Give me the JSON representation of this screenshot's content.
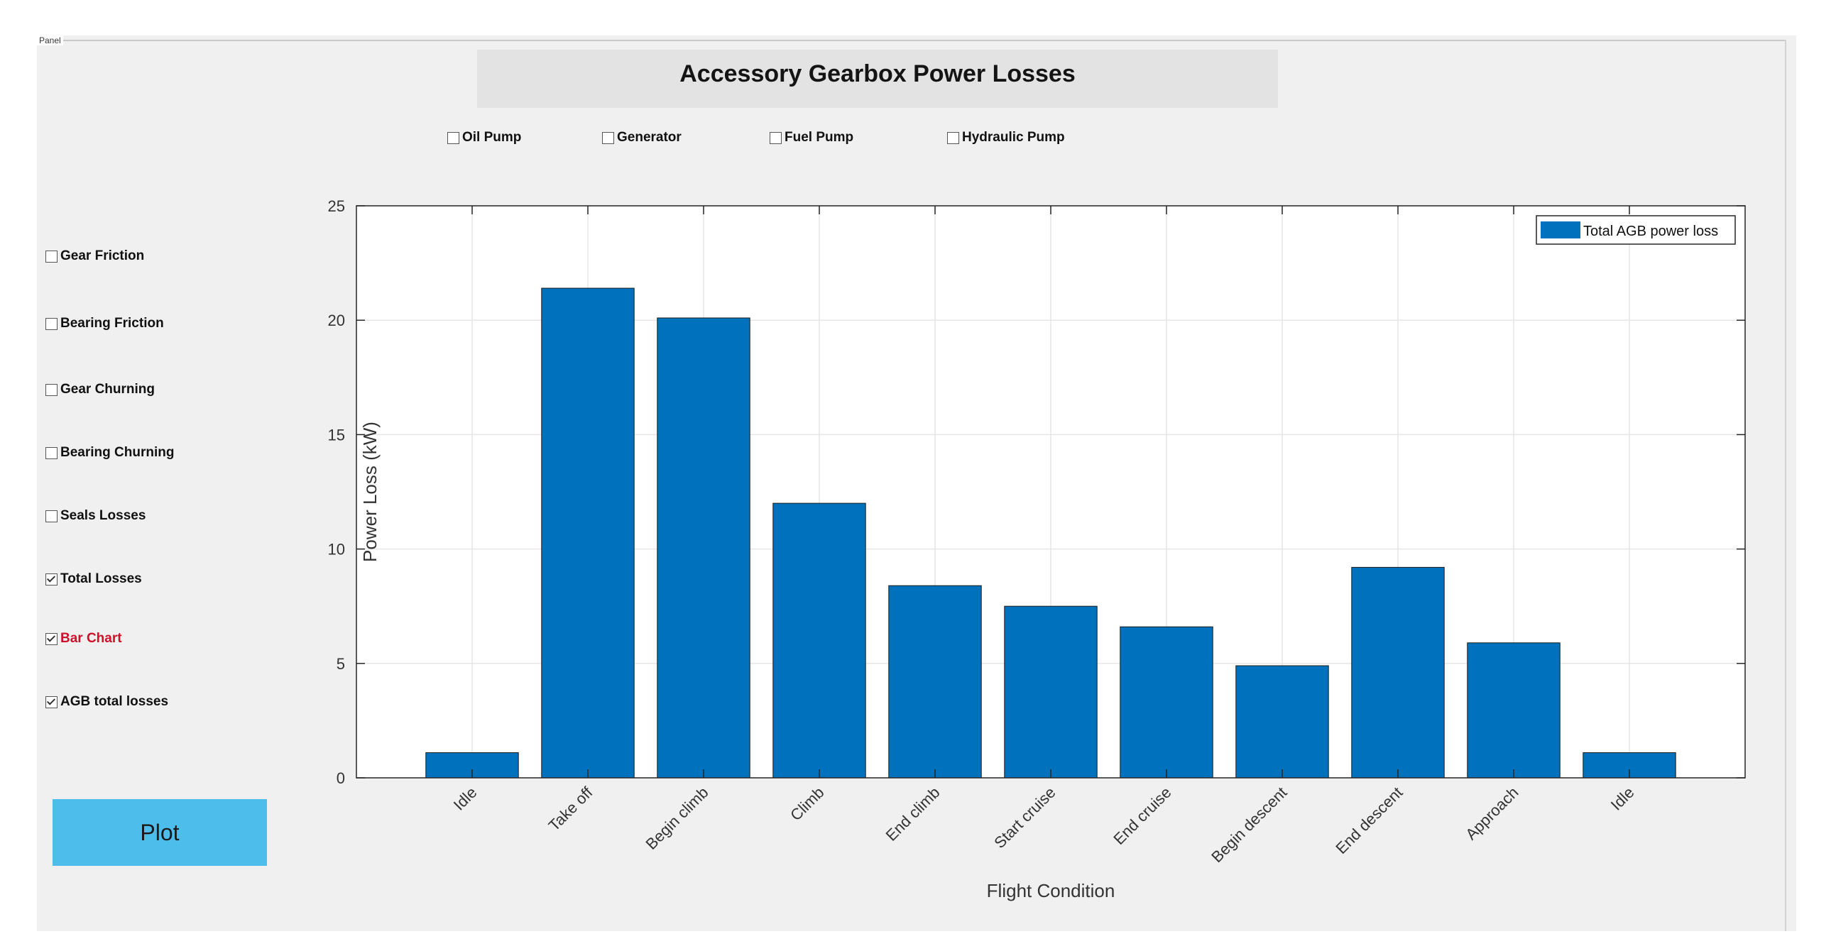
{
  "panel": {
    "label": "Panel"
  },
  "title": "Accessory Gearbox Power Losses",
  "top_checkboxes": [
    {
      "label": "Oil Pump",
      "checked": false
    },
    {
      "label": "Generator",
      "checked": false
    },
    {
      "label": "Fuel Pump",
      "checked": false
    },
    {
      "label": "Hydraulic Pump",
      "checked": false
    }
  ],
  "side_checkboxes": [
    {
      "label": "Gear Friction",
      "checked": false
    },
    {
      "label": "Bearing Friction",
      "checked": false
    },
    {
      "label": "Gear Churning",
      "checked": false
    },
    {
      "label": "Bearing Churning",
      "checked": false
    },
    {
      "label": "Seals Losses",
      "checked": false
    },
    {
      "label": "Total Losses",
      "checked": true
    },
    {
      "label": "Bar Chart",
      "checked": true,
      "color": "#d0102a"
    },
    {
      "label": "AGB total losses",
      "checked": true
    }
  ],
  "plot_button": {
    "label": "Plot"
  },
  "chart_data": {
    "type": "bar",
    "categories": [
      "Idle",
      "Take off",
      "Begin climb",
      "Climb",
      "End climb",
      "Start cruise",
      "End cruise",
      "Begin descent",
      "End descent",
      "Approach",
      "Idle"
    ],
    "series": [
      {
        "name": "Total AGB power loss",
        "values": [
          1.1,
          21.4,
          20.1,
          12.0,
          8.4,
          7.5,
          6.6,
          4.9,
          9.2,
          5.9,
          1.1
        ],
        "color": "#0072bd"
      }
    ],
    "xlabel": "Flight Condition",
    "ylabel": "Power Loss (kW)",
    "ylim": [
      0,
      25
    ],
    "yticks": [
      0,
      5,
      10,
      15,
      20,
      25
    ],
    "grid": true,
    "legend_position": "top-right"
  }
}
